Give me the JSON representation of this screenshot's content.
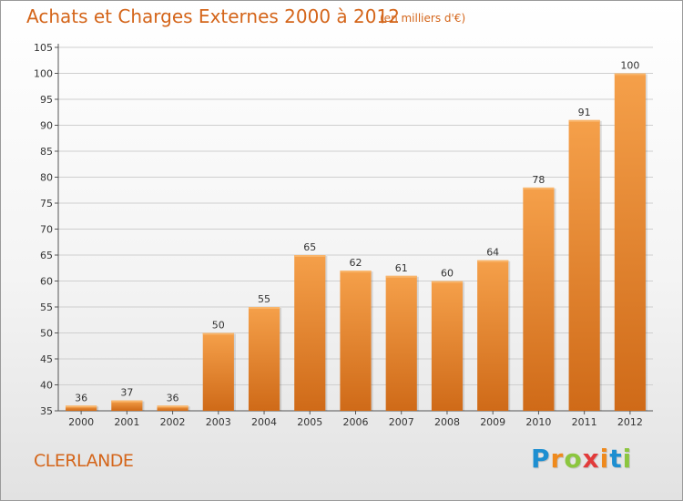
{
  "chart_data": {
    "type": "bar",
    "title": "Achats et Charges Externes 2000 à 2012",
    "subtitle": "(en milliers d'€)",
    "xlabel": "",
    "ylabel": "",
    "categories": [
      "2000",
      "2001",
      "2002",
      "2003",
      "2004",
      "2005",
      "2006",
      "2007",
      "2008",
      "2009",
      "2010",
      "2011",
      "2012"
    ],
    "values": [
      36,
      37,
      36,
      50,
      55,
      65,
      62,
      61,
      60,
      64,
      78,
      91,
      100
    ],
    "ylim": [
      35,
      105
    ],
    "yticks": [
      35,
      40,
      45,
      50,
      55,
      60,
      65,
      70,
      75,
      80,
      85,
      90,
      95,
      100,
      105
    ],
    "grid": true,
    "bar_color_top": "#f5a04a",
    "bar_color_bottom": "#cf6a18"
  },
  "place": "CLERLANDE",
  "logo": {
    "letters": [
      "P",
      "r",
      "o",
      "x",
      "i",
      "t",
      "i"
    ],
    "colors": [
      "#1e8fd1",
      "#ef8a1d",
      "#8cc63f",
      "#e23b3b",
      "#ef8a1d",
      "#1e8fd1",
      "#8cc63f"
    ]
  }
}
